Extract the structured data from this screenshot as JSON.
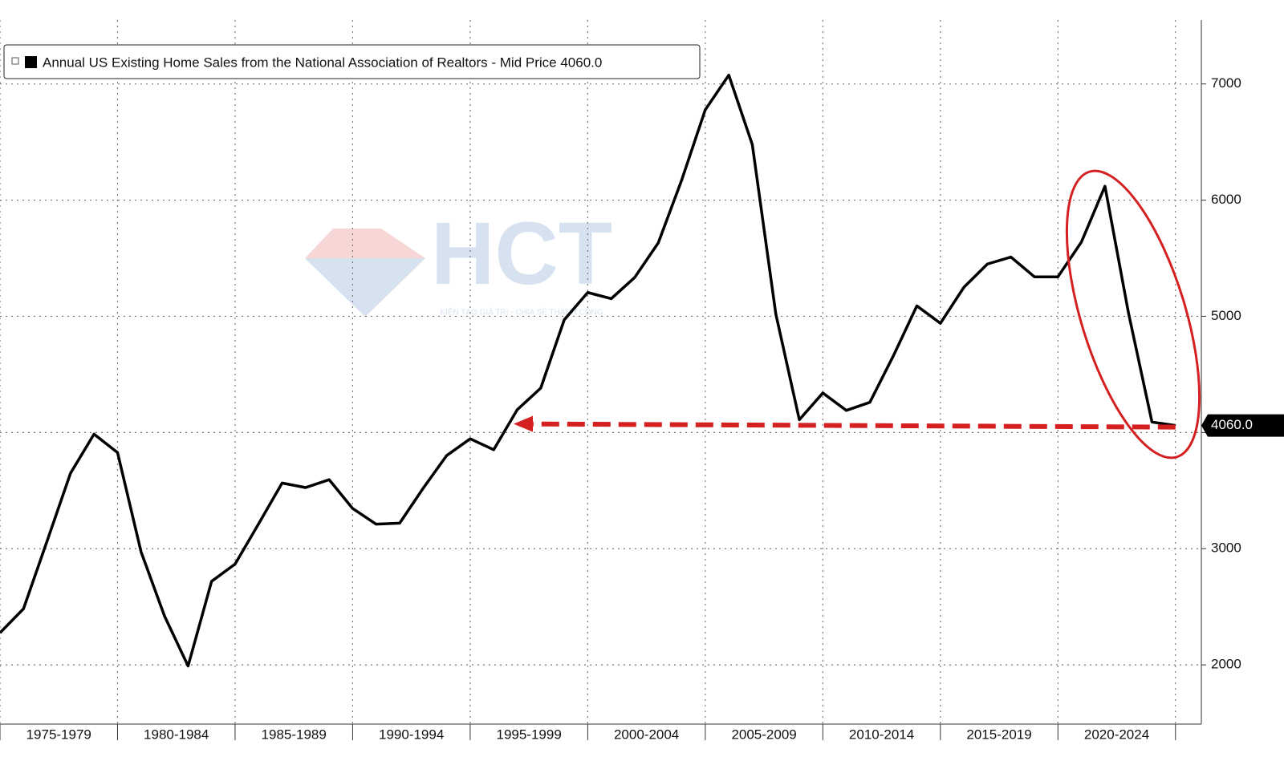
{
  "chart_data": {
    "type": "line",
    "x": [
      1974,
      1975,
      1976,
      1977,
      1978,
      1979,
      1980,
      1981,
      1982,
      1983,
      1984,
      1985,
      1986,
      1987,
      1988,
      1989,
      1990,
      1991,
      1992,
      1993,
      1994,
      1995,
      1996,
      1997,
      1998,
      1999,
      2000,
      2001,
      2002,
      2003,
      2004,
      2005,
      2006,
      2007,
      2008,
      2009,
      2010,
      2011,
      2012,
      2013,
      2014,
      2015,
      2016,
      2017,
      2018,
      2019,
      2020,
      2021,
      2022,
      2023,
      2024
    ],
    "series": [
      {
        "name": "Annual US Existing Home Sales from the National Association of Realtors - Mid Price 4060.0",
        "color": "#000000",
        "values": [
          2276,
          2483,
          3064,
          3650,
          3986,
          3827,
          2973,
          2419,
          1990,
          2719,
          2868,
          3214,
          3565,
          3526,
          3594,
          3346,
          3211,
          3220,
          3520,
          3802,
          3946,
          3852,
          4196,
          4382,
          4970,
          5205,
          5152,
          5335,
          5632,
          6175,
          6778,
          7076,
          6478,
          5020,
          4110,
          4340,
          4190,
          4260,
          4660,
          5090,
          4940,
          5250,
          5450,
          5510,
          5340,
          5340,
          5640,
          6120,
          5030,
          4090,
          4060
        ],
        "last_value_label": "4060.0"
      }
    ],
    "xlim": [
      1974,
      2025.1
    ],
    "x_boundaries": [
      1974,
      1979,
      1984,
      1989,
      1994,
      1999,
      2004,
      2009,
      2014,
      2019,
      2024
    ],
    "xticks": [
      {
        "value": 1976.5,
        "label": "1975-1979"
      },
      {
        "value": 1981.5,
        "label": "1980-1984"
      },
      {
        "value": 1986.5,
        "label": "1985-1989"
      },
      {
        "value": 1991.5,
        "label": "1990-1994"
      },
      {
        "value": 1996.5,
        "label": "1995-1999"
      },
      {
        "value": 2001.5,
        "label": "2000-2004"
      },
      {
        "value": 2006.5,
        "label": "2005-2009"
      },
      {
        "value": 2011.5,
        "label": "2010-2014"
      },
      {
        "value": 2016.5,
        "label": "2015-2019"
      },
      {
        "value": 2021.5,
        "label": "2020-2024"
      }
    ],
    "ylim": [
      1490,
      7550
    ],
    "yticks": [
      2000,
      3000,
      4000,
      5000,
      6000,
      7000
    ],
    "grid": true,
    "watermark": {
      "logo": "HCT",
      "slogan": "KIẾN TẠO GIÁ TRỊ - CHIA SẺ THÀNH CÔNG"
    }
  }
}
